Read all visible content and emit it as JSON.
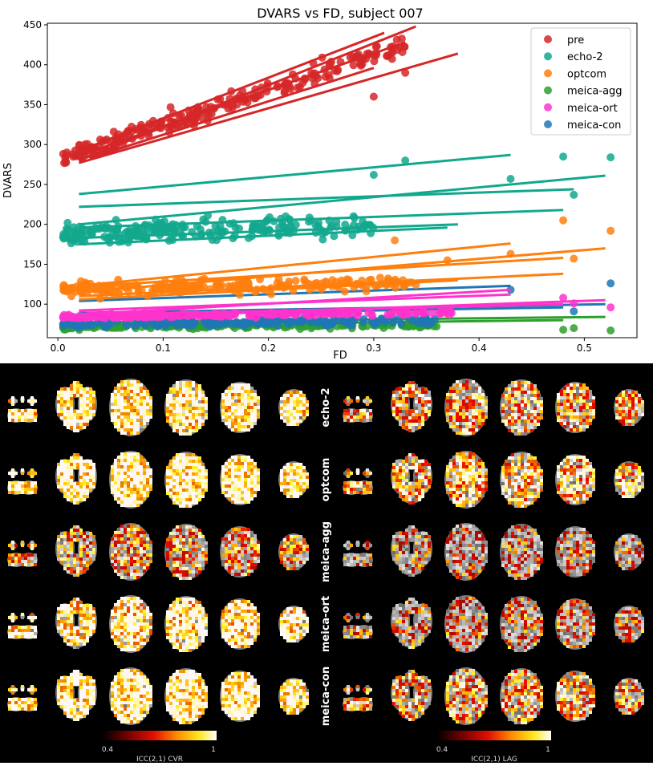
{
  "chart_data": {
    "type": "scatter",
    "title": "DVARS vs FD, subject 007",
    "xlabel": "FD",
    "ylabel": "DVARS",
    "xlim": [
      -0.01,
      0.55
    ],
    "ylim": [
      58,
      452
    ],
    "xticks": [
      0.0,
      0.1,
      0.2,
      0.3,
      0.4,
      0.5
    ],
    "yticks": [
      100,
      150,
      200,
      250,
      300,
      350,
      400,
      450
    ],
    "xtick_labels": [
      "0.0",
      "0.1",
      "0.2",
      "0.3",
      "0.4",
      "0.5"
    ],
    "ytick_labels": [
      "100",
      "150",
      "200",
      "250",
      "300",
      "350",
      "400",
      "450"
    ],
    "legend_position": "top-right",
    "grid": false,
    "series": [
      {
        "name": "pre",
        "color": "#d62728",
        "cloud": {
          "x_range": [
            0.005,
            0.33
          ],
          "y_base": 282,
          "slope": 430,
          "spread": 22
        },
        "outliers": [
          [
            0.3,
            360
          ],
          [
            0.33,
            390
          ]
        ],
        "fit_lines": [
          [
            0.02,
            292,
            0.31,
            440
          ],
          [
            0.02,
            280,
            0.34,
            448
          ],
          [
            0.02,
            286,
            0.33,
            428
          ],
          [
            0.02,
            277,
            0.38,
            414
          ],
          [
            0.03,
            283,
            0.3,
            396
          ]
        ]
      },
      {
        "name": "echo-2",
        "color": "#12a88e",
        "cloud": {
          "x_range": [
            0.005,
            0.3
          ],
          "y_base": 188,
          "slope": 40,
          "spread": 24
        },
        "outliers": [
          [
            0.48,
            285
          ],
          [
            0.525,
            284
          ],
          [
            0.43,
            257
          ],
          [
            0.49,
            237
          ],
          [
            0.33,
            280
          ],
          [
            0.3,
            262
          ]
        ],
        "fit_lines": [
          [
            0.02,
            238,
            0.43,
            287
          ],
          [
            0.02,
            200,
            0.52,
            261
          ],
          [
            0.02,
            222,
            0.49,
            244
          ],
          [
            0.02,
            196,
            0.48,
            218
          ],
          [
            0.02,
            183,
            0.38,
            200
          ],
          [
            0.02,
            175,
            0.37,
            196
          ]
        ]
      },
      {
        "name": "optcom",
        "color": "#ff7f0e",
        "cloud": {
          "x_range": [
            0.005,
            0.34
          ],
          "y_base": 118,
          "slope": 25,
          "spread": 14
        },
        "outliers": [
          [
            0.48,
            205
          ],
          [
            0.525,
            192
          ],
          [
            0.49,
            157
          ],
          [
            0.43,
            163
          ],
          [
            0.32,
            180
          ],
          [
            0.37,
            155
          ]
        ],
        "fit_lines": [
          [
            0.02,
            123,
            0.43,
            176
          ],
          [
            0.02,
            115,
            0.52,
            170
          ],
          [
            0.02,
            122,
            0.48,
            158
          ],
          [
            0.02,
            110,
            0.48,
            138
          ],
          [
            0.02,
            106,
            0.38,
            130
          ]
        ]
      },
      {
        "name": "meica-agg",
        "color": "#2ca02c",
        "cloud": {
          "x_range": [
            0.005,
            0.36
          ],
          "y_base": 72,
          "slope": 5,
          "spread": 6
        },
        "outliers": [
          [
            0.48,
            68
          ],
          [
            0.525,
            67
          ],
          [
            0.49,
            70
          ]
        ],
        "fit_lines": [
          [
            0.02,
            77,
            0.52,
            84
          ],
          [
            0.02,
            73,
            0.48,
            80
          ]
        ]
      },
      {
        "name": "meica-ort",
        "color": "#ff33cc",
        "cloud": {
          "x_range": [
            0.005,
            0.38
          ],
          "y_base": 84,
          "slope": 15,
          "spread": 5
        },
        "outliers": [
          [
            0.48,
            108
          ],
          [
            0.525,
            96
          ],
          [
            0.49,
            101
          ]
        ],
        "fit_lines": [
          [
            0.02,
            82,
            0.52,
            105
          ],
          [
            0.02,
            87,
            0.43,
            118
          ],
          [
            0.02,
            92,
            0.43,
            112
          ],
          [
            0.02,
            86,
            0.48,
            100
          ]
        ]
      },
      {
        "name": "meica-con",
        "color": "#1f77b4",
        "cloud": {
          "x_range": [
            0.005,
            0.36
          ],
          "y_base": 76,
          "slope": 8,
          "spread": 8
        },
        "outliers": [
          [
            0.525,
            126
          ],
          [
            0.49,
            91
          ],
          [
            0.43,
            118
          ]
        ],
        "fit_lines": [
          [
            0.02,
            104,
            0.43,
            123
          ],
          [
            0.02,
            89,
            0.52,
            100
          ],
          [
            0.02,
            86,
            0.48,
            96
          ]
        ]
      }
    ]
  },
  "brain_panel": {
    "row_labels": [
      "echo-2",
      "optcom",
      "meica-agg",
      "meica-ort",
      "meica-con"
    ],
    "left_colorbar": {
      "min_label": "0.4",
      "max_label": "1",
      "label": "ICC(2,1) CVR"
    },
    "right_colorbar": {
      "min_label": "0.4",
      "max_label": "1",
      "label": "ICC(2,1) LAG"
    },
    "left_brightness": [
      0.88,
      0.93,
      0.52,
      0.86,
      0.91
    ],
    "right_brightness": [
      0.62,
      0.7,
      0.3,
      0.36,
      0.58
    ]
  }
}
